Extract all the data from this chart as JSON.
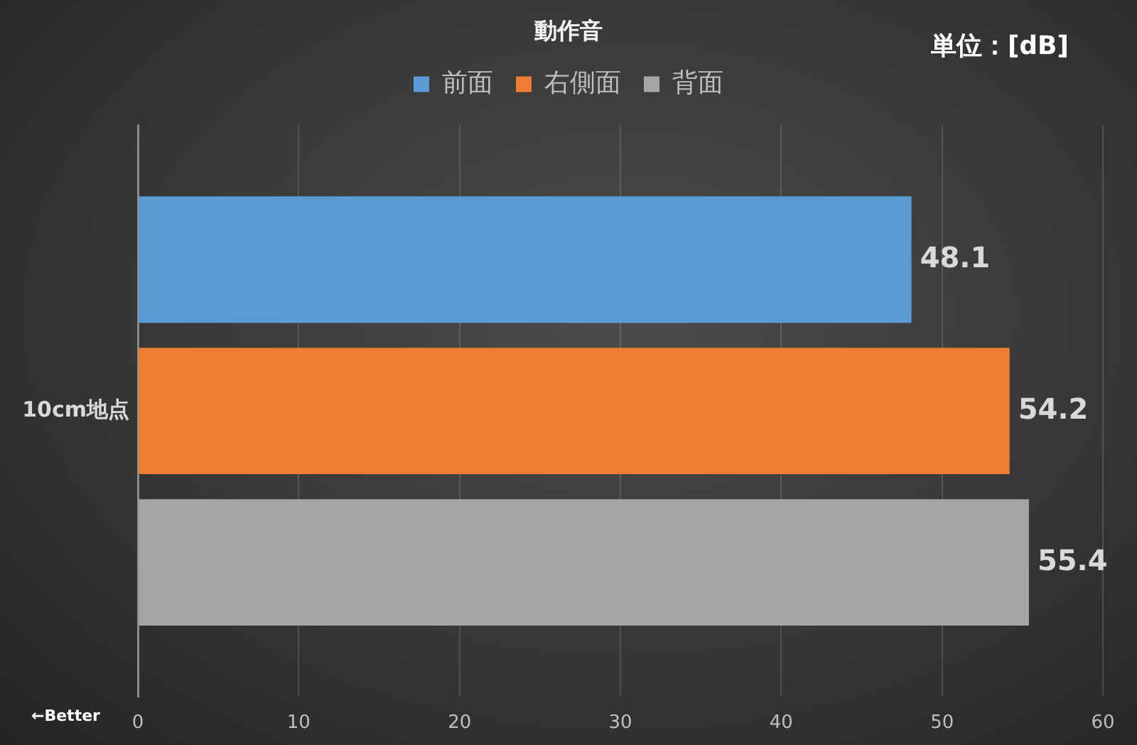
{
  "chart_data": {
    "type": "bar",
    "orientation": "horizontal",
    "title": "動作音",
    "categories": [
      "10cm地点"
    ],
    "series": [
      {
        "name": "前面",
        "color": "#5b9bd5",
        "values": [
          48.1
        ]
      },
      {
        "name": "右側面",
        "color": "#ed7d31",
        "values": [
          54.2
        ]
      },
      {
        "name": "背面",
        "color": "#a5a5a5",
        "values": [
          55.4
        ]
      }
    ],
    "xlim": [
      0,
      60
    ],
    "xticks": [
      0,
      10,
      20,
      30,
      40,
      50,
      60
    ],
    "grid": "x",
    "legend": "top",
    "data_labels": true,
    "annotations": [
      "単位：[dB]",
      "←Better"
    ]
  }
}
